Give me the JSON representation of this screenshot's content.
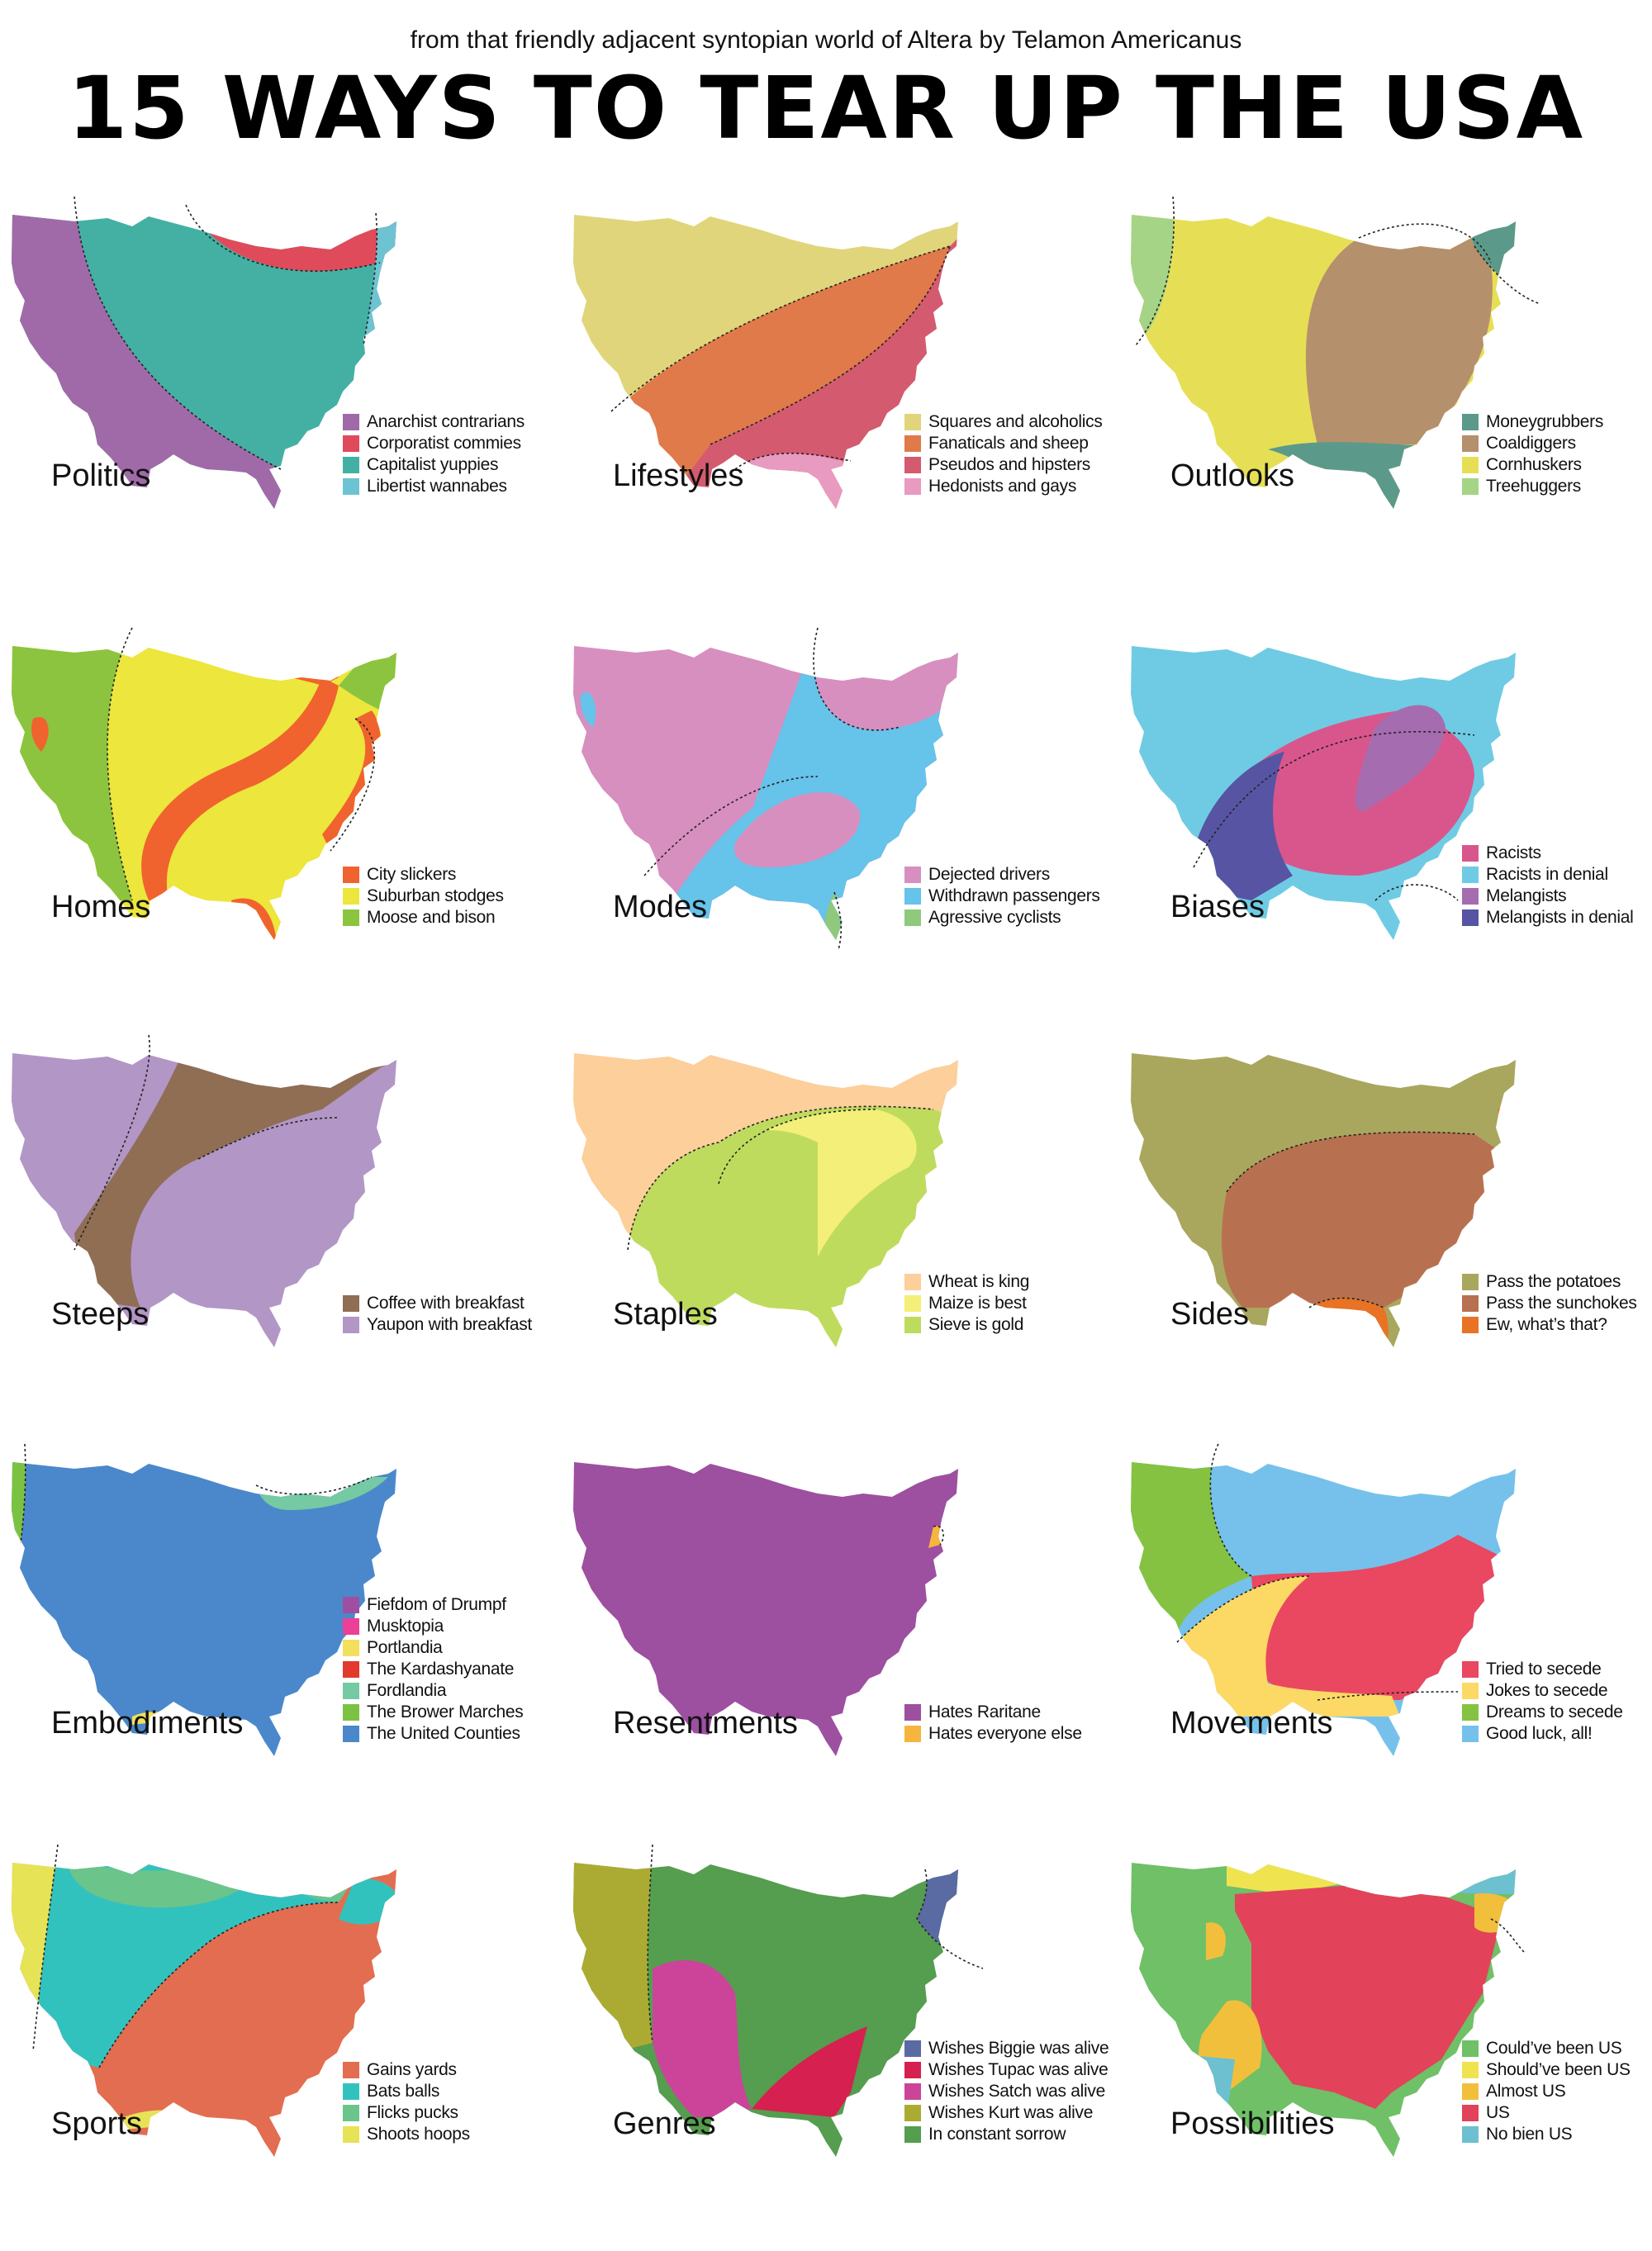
{
  "header": {
    "subtitle": "from that friendly adjacent syntopian world of Altera by Telamon Americanus",
    "title": "15 WAYS TO TEAR UP THE USA"
  },
  "panels": [
    {
      "id": "politics",
      "label": "Politics",
      "legend": [
        {
          "text": "Anarchist contrarians",
          "color": "#a06aa8"
        },
        {
          "text": "Corporatist commies",
          "color": "#e04b5b"
        },
        {
          "text": "Capitalist yuppies",
          "color": "#44b0a4"
        },
        {
          "text": "Libertist wannabes",
          "color": "#6ec3d2"
        }
      ]
    },
    {
      "id": "lifestyles",
      "label": "Lifestyles",
      "legend": [
        {
          "text": "Squares and alcoholics",
          "color": "#e0d57a"
        },
        {
          "text": "Fanaticals and sheep",
          "color": "#e07a4a"
        },
        {
          "text": "Pseudos and hipsters",
          "color": "#d45a70"
        },
        {
          "text": "Hedonists and gays",
          "color": "#e89ac0"
        }
      ]
    },
    {
      "id": "outlooks",
      "label": "Outlooks",
      "legend": [
        {
          "text": "Moneygrubbers",
          "color": "#5b9a8b"
        },
        {
          "text": "Coaldiggers",
          "color": "#b5906c"
        },
        {
          "text": "Cornhuskers",
          "color": "#e6df55"
        },
        {
          "text": "Treehuggers",
          "color": "#a6d486"
        }
      ]
    },
    {
      "id": "homes",
      "label": "Homes",
      "legend": [
        {
          "text": "City slickers",
          "color": "#f0632e"
        },
        {
          "text": "Suburban stodges",
          "color": "#ece63d"
        },
        {
          "text": "Moose and bison",
          "color": "#8cc43f"
        }
      ]
    },
    {
      "id": "modes",
      "label": "Modes",
      "legend": [
        {
          "text": "Dejected drivers",
          "color": "#d78fc0"
        },
        {
          "text": "Withdrawn passengers",
          "color": "#66c3ea"
        },
        {
          "text": "Agressive cyclists",
          "color": "#8ec97e"
        }
      ]
    },
    {
      "id": "biases",
      "label": "Biases",
      "legend": [
        {
          "text": "Racists",
          "color": "#d9568c"
        },
        {
          "text": "Racists in denial",
          "color": "#6fcbe3"
        },
        {
          "text": "Melangists",
          "color": "#a66cb0"
        },
        {
          "text": "Melangists in denial",
          "color": "#5754a3"
        }
      ]
    },
    {
      "id": "steeps",
      "label": "Steeps",
      "legend": [
        {
          "text": "Coffee with breakfast",
          "color": "#8f6e54"
        },
        {
          "text": "Yaupon with breakfast",
          "color": "#b296c6"
        }
      ]
    },
    {
      "id": "staples",
      "label": "Staples",
      "legend": [
        {
          "text": "Wheat is king",
          "color": "#fccf9b"
        },
        {
          "text": "Maize is best",
          "color": "#f3ef78"
        },
        {
          "text": "Sieve is gold",
          "color": "#bfdb5e"
        }
      ]
    },
    {
      "id": "sides",
      "label": "Sides",
      "legend": [
        {
          "text": "Pass the potatoes",
          "color": "#a9a75e"
        },
        {
          "text": "Pass the sunchokes",
          "color": "#b87150"
        },
        {
          "text": "Ew, what’s that?",
          "color": "#e87324"
        }
      ]
    },
    {
      "id": "embodiments",
      "label": "Embodiments",
      "legend": [
        {
          "text": "Fiefdom of Drumpf",
          "color": "#a04ea2"
        },
        {
          "text": "Musktopia",
          "color": "#ec3f97"
        },
        {
          "text": "Portlandia",
          "color": "#f2df5d"
        },
        {
          "text": "The Kardashyanate",
          "color": "#e23a2d"
        },
        {
          "text": "Fordlandia",
          "color": "#75c9a3"
        },
        {
          "text": "The Brower Marches",
          "color": "#7cc242"
        },
        {
          "text": "The United Counties",
          "color": "#4a88cb"
        }
      ]
    },
    {
      "id": "resentments",
      "label": "Resentments",
      "legend": [
        {
          "text": "Hates Raritane",
          "color": "#9d4fa0"
        },
        {
          "text": "Hates everyone else",
          "color": "#f7b53d"
        }
      ]
    },
    {
      "id": "movements",
      "label": "Movements",
      "legend": [
        {
          "text": "Tried to secede",
          "color": "#ea4760"
        },
        {
          "text": "Jokes to secede",
          "color": "#fcd965"
        },
        {
          "text": "Dreams to secede",
          "color": "#86c241"
        },
        {
          "text": "Good luck, all!",
          "color": "#75c1ec"
        }
      ]
    },
    {
      "id": "sports",
      "label": "Sports",
      "legend": [
        {
          "text": "Gains yards",
          "color": "#e36d50"
        },
        {
          "text": "Bats balls",
          "color": "#32c2be"
        },
        {
          "text": "Flicks pucks",
          "color": "#6bc48a"
        },
        {
          "text": "Shoots hoops",
          "color": "#e6e357"
        }
      ]
    },
    {
      "id": "genres",
      "label": "Genres",
      "legend": [
        {
          "text": "Wishes Biggie was alive",
          "color": "#5a6aa3"
        },
        {
          "text": "Wishes Tupac was alive",
          "color": "#d6204f"
        },
        {
          "text": "Wishes Satch was alive",
          "color": "#cc449a"
        },
        {
          "text": "Wishes Kurt was alive",
          "color": "#abab33"
        },
        {
          "text": "In constant sorrow",
          "color": "#559d4f"
        }
      ]
    },
    {
      "id": "possibilities",
      "label": "Possibilities",
      "legend": [
        {
          "text": "Could’ve been US",
          "color": "#6fc067"
        },
        {
          "text": "Should’ve been US",
          "color": "#efe450"
        },
        {
          "text": "Almost US",
          "color": "#f2bf3c"
        },
        {
          "text": "US",
          "color": "#e2435a"
        },
        {
          "text": "No bien US",
          "color": "#6cc0d0"
        }
      ]
    }
  ]
}
